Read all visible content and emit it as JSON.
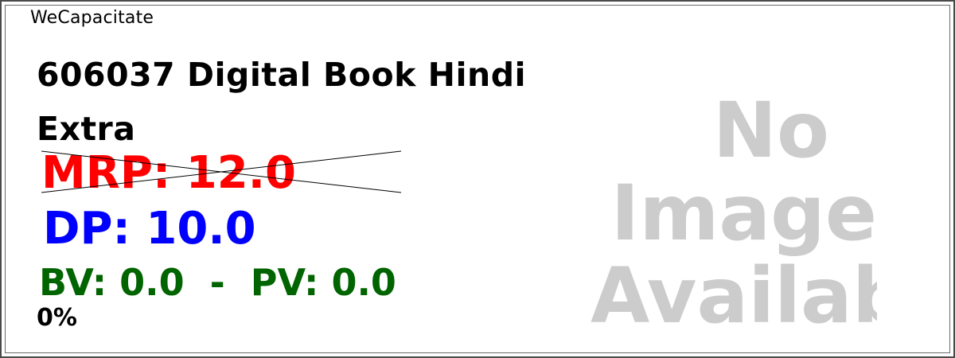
{
  "brand": "WeCapacitate",
  "product": {
    "title": "606037 Digital Book Hindi Extra",
    "mrp": "MRP: 12.0",
    "dp": "DP: 10.0",
    "bv_pv": "BV: 0.0  -  PV: 0.0",
    "discount": "0%"
  },
  "placeholder_image": {
    "line1": "No",
    "line2": "Image",
    "line3": "Available"
  },
  "colors": {
    "mrp": "#ff0000",
    "dp": "#0000ff",
    "bv_pv": "#006400",
    "placeholder": "#cccccc"
  }
}
